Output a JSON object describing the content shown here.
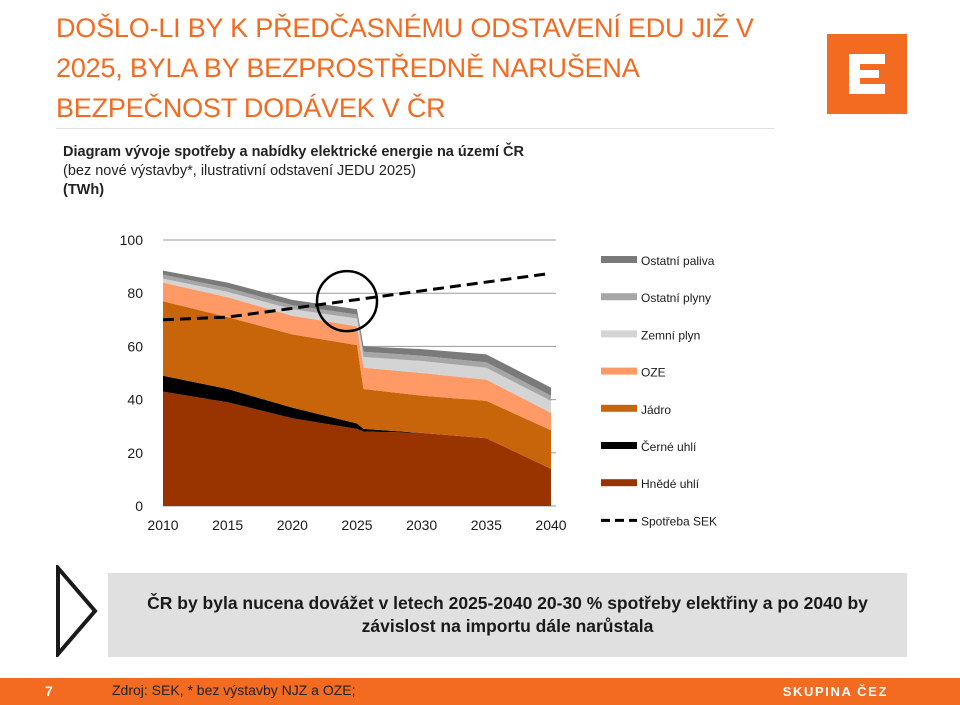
{
  "headline": {
    "line1": "DOŠLO-LI BY K PŘEDČASNÉMU ODSTAVENÍ EDU JIŽ V",
    "line2": "2025, BYLA BY BEZPROSTŘEDNĚ NARUŠENA",
    "line3": "BEZPEČNOST DODÁVEK V ČR"
  },
  "subtitle": {
    "line1": "Diagram vývoje spotřeby a nabídky elektrické energie na území ČR",
    "line2": "(bez nové výstavby*, ilustrativní odstavení JEDU 2025)",
    "line3": "(TWh)"
  },
  "colors": {
    "brand_orange": "#f26b21",
    "ostatni_paliva": "#7a7a7a",
    "ostatni_plyny": "#a6a6a6",
    "zemni_plyn": "#d4d4d4",
    "oze": "#ff9966",
    "jadro": "#c8650a",
    "cerne_uhli": "#000000",
    "hnede_uhli": "#993300"
  },
  "chart_data": {
    "type": "area",
    "x": [
      2010,
      2015,
      2020,
      2025,
      2025.5,
      2030,
      2035,
      2040
    ],
    "x_ticks": [
      "2010",
      "2015",
      "2020",
      "2025",
      "2030",
      "2035",
      "2040"
    ],
    "y_ticks": [
      "0",
      "20",
      "40",
      "60",
      "80",
      "100"
    ],
    "ylim": [
      0,
      100
    ],
    "stacked": true,
    "series": [
      {
        "name": "Hnědé uhlí",
        "values": [
          43,
          39,
          33,
          29,
          28,
          27.5,
          25.5,
          14
        ],
        "color": "#993300"
      },
      {
        "name": "Černé uhlí",
        "values": [
          6,
          5,
          4,
          2,
          1,
          0,
          0,
          0
        ],
        "color": "#000000"
      },
      {
        "name": "Jádro",
        "values": [
          28,
          27,
          27.5,
          29.5,
          15,
          14,
          14,
          14.5
        ],
        "color": "#c8650a"
      },
      {
        "name": "OZE",
        "values": [
          7,
          7.5,
          7,
          7,
          8,
          8.5,
          8,
          6.5
        ],
        "color": "#ff9966"
      },
      {
        "name": "Zemní plyn",
        "values": [
          1.5,
          2,
          2.5,
          3,
          4,
          4.5,
          4.5,
          4.5
        ],
        "color": "#d4d4d4"
      },
      {
        "name": "Ostatní plyny",
        "values": [
          1.5,
          1.5,
          1.5,
          1.5,
          2,
          2,
          2,
          2
        ],
        "color": "#a6a6a6"
      },
      {
        "name": "Ostatní paliva",
        "values": [
          1.5,
          2,
          2,
          2,
          2,
          2.5,
          3,
          3
        ],
        "color": "#7a7a7a"
      }
    ],
    "line_series": {
      "name": "Spotřeba SEK",
      "x": [
        2010,
        2015,
        2040
      ],
      "values": [
        70,
        71,
        87.5
      ],
      "style": "dashed"
    },
    "legend": [
      "Ostatní paliva",
      "Ostatní plyny",
      "Zemní plyn",
      "OZE",
      "Jádro",
      "Černé uhlí",
      "Hnědé uhlí",
      "Spotřeba SEK"
    ],
    "legend_position": "right",
    "grid": true,
    "annotation": "circle at 2025"
  },
  "callout": {
    "text": "ČR by byla nucena dovážet v letech 2025-2040 20-30 % spotřeby elektřiny a po 2040 by závislost na importu dále narůstala"
  },
  "footer": {
    "page_number": "7",
    "source": "Zdroj: SEK,  * bez výstavby NJZ a OZE;",
    "brand": "SKUPINA ČEZ"
  }
}
